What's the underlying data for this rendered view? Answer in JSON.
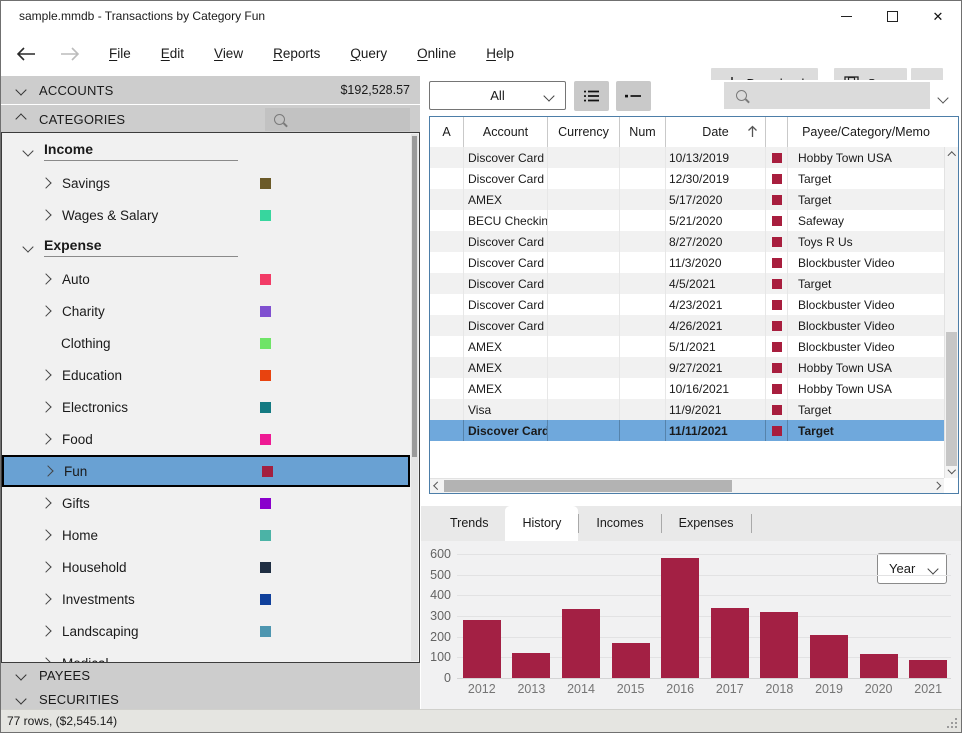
{
  "window": {
    "title": "sample.mmdb - Transactions by Category Fun"
  },
  "menu": {
    "items": [
      "File",
      "Edit",
      "View",
      "Reports",
      "Query",
      "Online",
      "Help"
    ]
  },
  "header_buttons": {
    "download": "Download",
    "save": "Save"
  },
  "sidebar": {
    "accounts": {
      "label": "ACCOUNTS",
      "total": "$192,528.57"
    },
    "categories_label": "CATEGORIES",
    "payees_label": "PAYEES",
    "securities_label": "SECURITIES",
    "tree": [
      {
        "label": "Income",
        "group": true,
        "expanded": true
      },
      {
        "label": "Savings",
        "color": "#6B5A28",
        "chevron": true
      },
      {
        "label": "Wages & Salary",
        "color": "#37D69E",
        "chevron": true
      },
      {
        "label": "Expense",
        "group": true,
        "expanded": true
      },
      {
        "label": "Auto",
        "color": "#F23B66",
        "chevron": true
      },
      {
        "label": "Charity",
        "color": "#8050D0",
        "chevron": true
      },
      {
        "label": "Clothing",
        "color": "#6FE467",
        "chevron": false
      },
      {
        "label": "Education",
        "color": "#E8430F",
        "chevron": true
      },
      {
        "label": "Electronics",
        "color": "#147A82",
        "chevron": true
      },
      {
        "label": "Food",
        "color": "#EE1A94",
        "chevron": true
      },
      {
        "label": "Fun",
        "color": "#A32040",
        "chevron": true,
        "selected": true
      },
      {
        "label": "Gifts",
        "color": "#8A00CC",
        "chevron": true
      },
      {
        "label": "Home",
        "color": "#4BB3A6",
        "chevron": true
      },
      {
        "label": "Household",
        "color": "#1F2E42",
        "chevron": true
      },
      {
        "label": "Investments",
        "color": "#10409B",
        "chevron": true
      },
      {
        "label": "Landscaping",
        "color": "#4E96B0",
        "chevron": true
      },
      {
        "label": "Medical",
        "chevron": true,
        "clipped": true
      }
    ]
  },
  "transactions": {
    "filter_value": "All",
    "columns": {
      "flag": "A",
      "account": "Account",
      "currency": "Currency",
      "num": "Num",
      "date": "Date",
      "payee": "Payee/Category/Memo"
    },
    "sort_column": "Date",
    "category_color": "#A81E3E",
    "rows": [
      {
        "account": "Discover Card",
        "date": "10/13/2019",
        "payee": "Hobby Town USA"
      },
      {
        "account": "Discover Card",
        "date": "12/30/2019",
        "payee": "Target"
      },
      {
        "account": "AMEX",
        "date": "5/17/2020",
        "payee": "Target"
      },
      {
        "account": "BECU Checking",
        "date": "5/21/2020",
        "payee": "Safeway"
      },
      {
        "account": "Discover Card",
        "date": "8/27/2020",
        "payee": "Toys R Us"
      },
      {
        "account": "Discover Card",
        "date": "11/3/2020",
        "payee": "Blockbuster Video"
      },
      {
        "account": "Discover Card",
        "date": "4/5/2021",
        "payee": "Target"
      },
      {
        "account": "Discover Card",
        "date": "4/23/2021",
        "payee": "Blockbuster Video"
      },
      {
        "account": "Discover Card",
        "date": "4/26/2021",
        "payee": "Blockbuster Video"
      },
      {
        "account": "AMEX",
        "date": "5/1/2021",
        "payee": "Blockbuster Video"
      },
      {
        "account": "AMEX",
        "date": "9/27/2021",
        "payee": "Hobby Town USA"
      },
      {
        "account": "AMEX",
        "date": "10/16/2021",
        "payee": "Hobby Town USA"
      },
      {
        "account": "Visa",
        "date": "11/9/2021",
        "payee": "Target"
      },
      {
        "account": "Discover Card",
        "date": "11/11/2021",
        "payee": "Target",
        "selected": true
      }
    ]
  },
  "tabs": {
    "items": [
      "Trends",
      "History",
      "Incomes",
      "Expenses"
    ],
    "active": "History"
  },
  "chart_data": {
    "type": "bar",
    "categories": [
      "2012",
      "2013",
      "2014",
      "2015",
      "2016",
      "2017",
      "2018",
      "2019",
      "2020",
      "2021"
    ],
    "values": [
      280,
      120,
      335,
      170,
      580,
      340,
      320,
      210,
      118,
      85
    ],
    "title": "",
    "xlabel": "",
    "ylabel": "",
    "ylim": [
      0,
      600
    ],
    "yticks": [
      0,
      100,
      200,
      300,
      400,
      500,
      600
    ],
    "bar_color": "#A32044",
    "grid": true,
    "legend": "none",
    "period_selector": "Year"
  },
  "status_bar": {
    "text": "77 rows, ($2,545.14)"
  }
}
